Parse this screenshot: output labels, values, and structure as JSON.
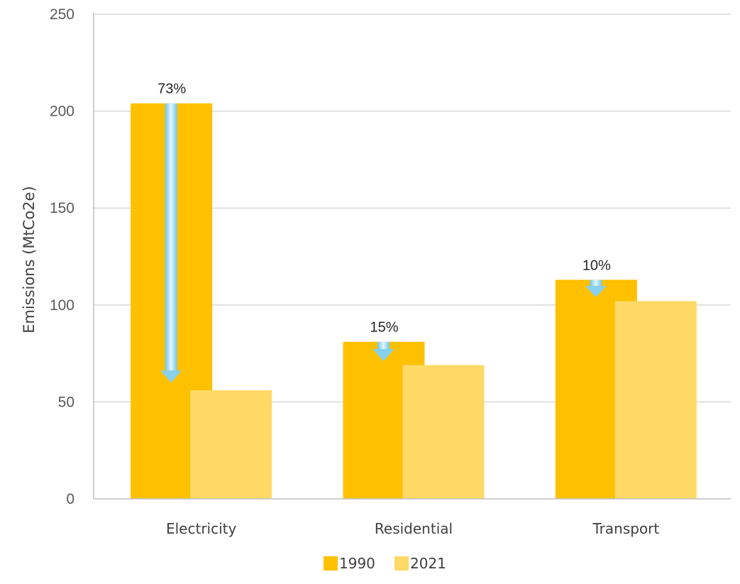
{
  "chart_data": {
    "type": "bar",
    "title": "",
    "xlabel": "",
    "ylabel": "Emissions (MtCo2e)",
    "ylim": [
      0,
      250
    ],
    "yticks": [
      0,
      50,
      100,
      150,
      200,
      250
    ],
    "grid": true,
    "legend_position": "bottom-center",
    "categories": [
      "Electricity",
      "Residential",
      "Transport"
    ],
    "series": [
      {
        "name": "1990",
        "color": "#FFC000",
        "values": [
          204,
          81,
          113
        ]
      },
      {
        "name": "2021",
        "color": "#FFD966",
        "values": [
          56,
          69,
          102
        ]
      }
    ],
    "annotations": [
      {
        "category": "Electricity",
        "text": "73%",
        "from": 204,
        "to": 60,
        "arrow": "down",
        "color": "#9DD9F3"
      },
      {
        "category": "Residential",
        "text": "15%",
        "from": 81,
        "to": 71,
        "arrow": "down",
        "color": "#9DD9F3"
      },
      {
        "category": "Transport",
        "text": "10%",
        "from": 113,
        "to": 104,
        "arrow": "down",
        "color": "#9DD9F3"
      }
    ]
  }
}
